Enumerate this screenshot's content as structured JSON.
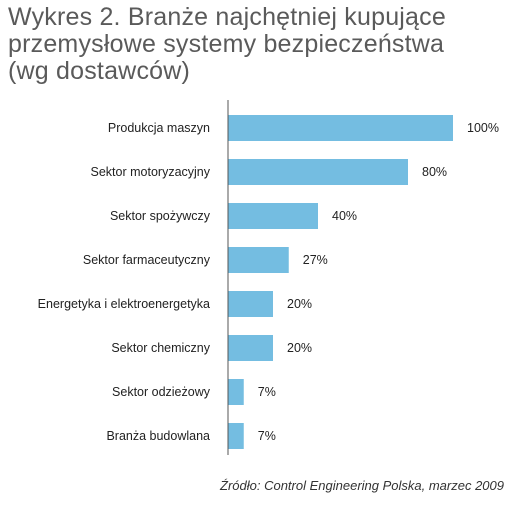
{
  "chart_data": {
    "type": "bar",
    "orientation": "horizontal",
    "title_lines": [
      "Wykres 2. Branże najchętniej kupujące",
      "przemysłowe systemy bezpieczeństwa",
      "(wg dostawców)"
    ],
    "categories": [
      "Produkcja maszyn",
      "Sektor motoryzacyjny",
      "Sektor spożywczy",
      "Sektor farmaceutyczny",
      "Energetyka i elektroenergetyka",
      "Sektor chemiczny",
      "Sektor odzieżowy",
      "Branża budowlana"
    ],
    "values": [
      100,
      80,
      40,
      27,
      20,
      20,
      7,
      7
    ],
    "value_labels": [
      "100%",
      "80%",
      "40%",
      "27%",
      "20%",
      "20%",
      "7%",
      "7%"
    ],
    "xlim": [
      0,
      100
    ],
    "grid": false,
    "legend": "none",
    "bar_color": "#74bde1",
    "axis_color": "#555555",
    "source": "Źródło: Control Engineering Polska, marzec 2009"
  }
}
